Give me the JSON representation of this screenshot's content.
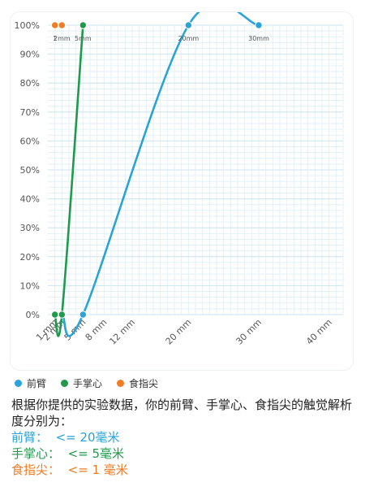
{
  "chart_data": {
    "type": "line",
    "xlabel": "",
    "ylabel": "",
    "xlim": [
      0,
      42
    ],
    "ylim": [
      0,
      100
    ],
    "x_tick_labels": [
      "1 mm",
      "2 mm",
      "5 mm",
      "8 mm",
      "12 mm",
      "20 mm",
      "30 mm",
      "40 mm"
    ],
    "x_tick_values": [
      1,
      2,
      5,
      8,
      12,
      20,
      30,
      40
    ],
    "y_ticks": [
      0,
      10,
      20,
      30,
      40,
      50,
      60,
      70,
      80,
      90,
      100
    ],
    "y_tick_labels": [
      "0%",
      "10%",
      "20%",
      "30%",
      "40%",
      "50%",
      "60%",
      "70%",
      "80%",
      "90%",
      "100%"
    ],
    "grid": true,
    "legend_position": "bottom-left",
    "series": [
      {
        "name": "前臂",
        "color": "#29a3d8",
        "points": [
          {
            "x": 1,
            "y": 0
          },
          {
            "x": 2,
            "y": 0
          },
          {
            "x": 5,
            "y": 0
          },
          {
            "x": 20,
            "y": 100,
            "label": "20mm"
          },
          {
            "x": 30,
            "y": 100,
            "label": "30mm"
          }
        ]
      },
      {
        "name": "手掌心",
        "color": "#1f9a4c",
        "points": [
          {
            "x": 1,
            "y": 0
          },
          {
            "x": 2,
            "y": 0
          },
          {
            "x": 5,
            "y": 100,
            "label": "5mm"
          }
        ]
      },
      {
        "name": "食指尖",
        "color": "#f07c23",
        "points": [
          {
            "x": 1,
            "y": 100,
            "label": "1"
          },
          {
            "x": 2,
            "y": 100,
            "label": "2mm"
          }
        ]
      }
    ]
  },
  "answer": {
    "intro": "根据你提供的实验数据，你的前臂、手掌心、食指尖的触觉解析度分别为：",
    "rows": [
      {
        "label": "前臂：",
        "value": "<= 20毫米",
        "color": "#29a3d8"
      },
      {
        "label": "手掌心：",
        "value": "<= 5毫米",
        "color": "#1f9a4c"
      },
      {
        "label": "食指尖：",
        "value": "<= 1 毫米",
        "color": "#f07c23"
      }
    ]
  }
}
